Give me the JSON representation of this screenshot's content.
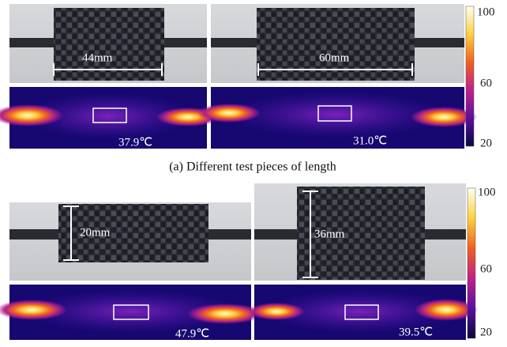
{
  "panel_a": {
    "images": [
      {
        "length": "44mm",
        "temperature": "37.9℃"
      },
      {
        "length": "60mm",
        "temperature": "31.0℃"
      }
    ],
    "colorbar": [
      "100",
      "60",
      "20"
    ],
    "caption": "(a) Different test pieces of length"
  },
  "panel_b": {
    "images": [
      {
        "width": "20mm",
        "temperature": "47.9℃"
      },
      {
        "width": "36mm",
        "temperature": "39.5℃"
      }
    ],
    "colorbar": [
      "100",
      "60",
      "20"
    ]
  }
}
